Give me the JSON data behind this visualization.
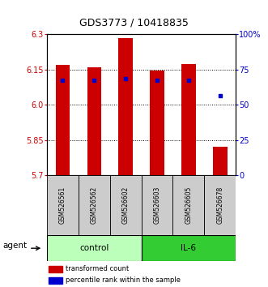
{
  "title": "GDS3773 / 10418835",
  "samples": [
    "GSM526561",
    "GSM526562",
    "GSM526602",
    "GSM526603",
    "GSM526605",
    "GSM526678"
  ],
  "red_values": [
    6.17,
    6.16,
    6.285,
    6.145,
    6.175,
    5.82
  ],
  "blue_values": [
    6.105,
    6.105,
    6.11,
    6.105,
    6.105,
    6.04
  ],
  "ylim": [
    5.7,
    6.3
  ],
  "yticks_left": [
    5.7,
    5.85,
    6.0,
    6.15,
    6.3
  ],
  "yticks_right_vals": [
    0,
    25,
    50,
    75,
    100
  ],
  "yticks_right_labels": [
    "0",
    "25",
    "50",
    "75",
    "100%"
  ],
  "left_color": "#cc0000",
  "right_color": "#0000cc",
  "bar_bottom": 5.7,
  "bar_width": 0.45,
  "control_color": "#bbffbb",
  "il6_color": "#33cc33",
  "sample_box_color": "#cccccc",
  "legend_red_label": "transformed count",
  "legend_blue_label": "percentile rank within the sample",
  "agent_label": "agent",
  "control_label": "control",
  "il6_label": "IL-6",
  "grid_yticks": [
    5.85,
    6.0,
    6.15
  ]
}
